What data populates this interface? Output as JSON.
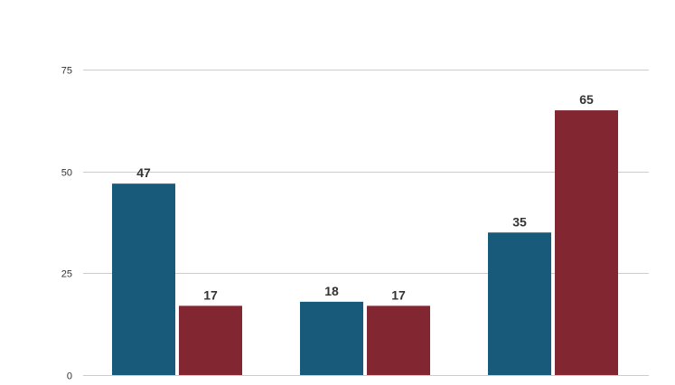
{
  "chart_data": {
    "type": "bar",
    "title": "",
    "xlabel": "",
    "ylabel": "",
    "categories": [
      "",
      "",
      ""
    ],
    "series": [
      {
        "values": [
          47,
          18,
          35
        ],
        "color": "#175A7A"
      },
      {
        "values": [
          17,
          17,
          65
        ],
        "color": "#822631"
      }
    ],
    "ylim": [
      0,
      75
    ],
    "yticks": [
      0,
      25,
      50,
      75
    ],
    "grid": true,
    "legend": "none",
    "data_labels": true
  }
}
